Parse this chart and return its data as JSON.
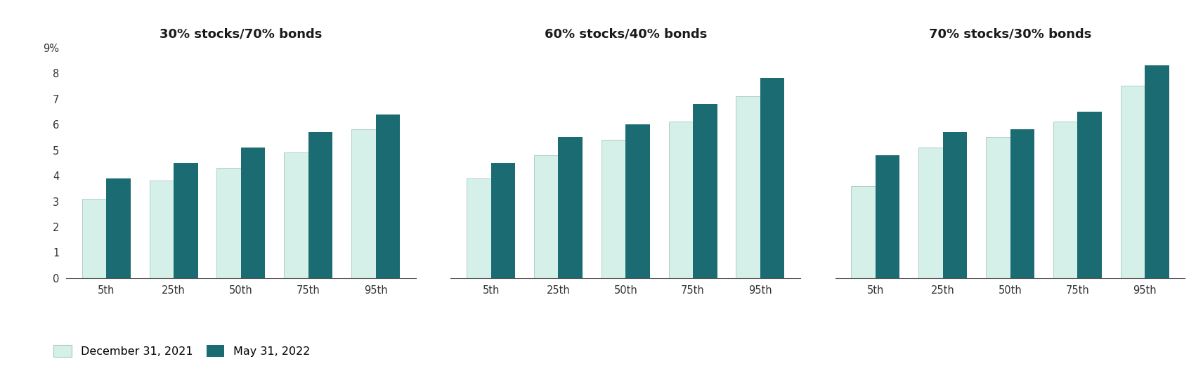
{
  "portfolios": [
    {
      "title": "30% stocks/70% bonds",
      "percentiles": [
        "5th",
        "25th",
        "50th",
        "75th",
        "95th"
      ],
      "dec_2021": [
        3.1,
        3.8,
        4.3,
        4.9,
        5.8
      ],
      "may_2022": [
        3.9,
        4.5,
        5.1,
        5.7,
        6.4
      ]
    },
    {
      "title": "60% stocks/40% bonds",
      "percentiles": [
        "5th",
        "25th",
        "50th",
        "75th",
        "95th"
      ],
      "dec_2021": [
        3.9,
        4.8,
        5.4,
        6.1,
        7.1
      ],
      "may_2022": [
        4.5,
        5.5,
        6.0,
        6.8,
        7.8
      ]
    },
    {
      "title": "70% stocks/30% bonds",
      "percentiles": [
        "5th",
        "25th",
        "50th",
        "75th",
        "95th"
      ],
      "dec_2021": [
        3.6,
        5.1,
        5.5,
        6.1,
        7.5
      ],
      "may_2022": [
        4.8,
        5.7,
        5.8,
        6.5,
        8.3
      ]
    }
  ],
  "color_dec": "#d5efe9",
  "color_may": "#1a6b72",
  "color_dec_edge": "#aac8c0",
  "ylim": [
    0,
    9
  ],
  "yticks": [
    0,
    1,
    2,
    3,
    4,
    5,
    6,
    7,
    8,
    9
  ],
  "ytick_labels": [
    "0",
    "1",
    "2",
    "3",
    "4",
    "5",
    "6",
    "7",
    "8",
    "9%"
  ],
  "legend_dec": "December 31, 2021",
  "legend_may": "May 31, 2022",
  "bar_width": 0.36,
  "title_fontsize": 13,
  "tick_fontsize": 10.5,
  "legend_fontsize": 11.5,
  "figsize": [
    17.12,
    5.21
  ],
  "dpi": 100
}
